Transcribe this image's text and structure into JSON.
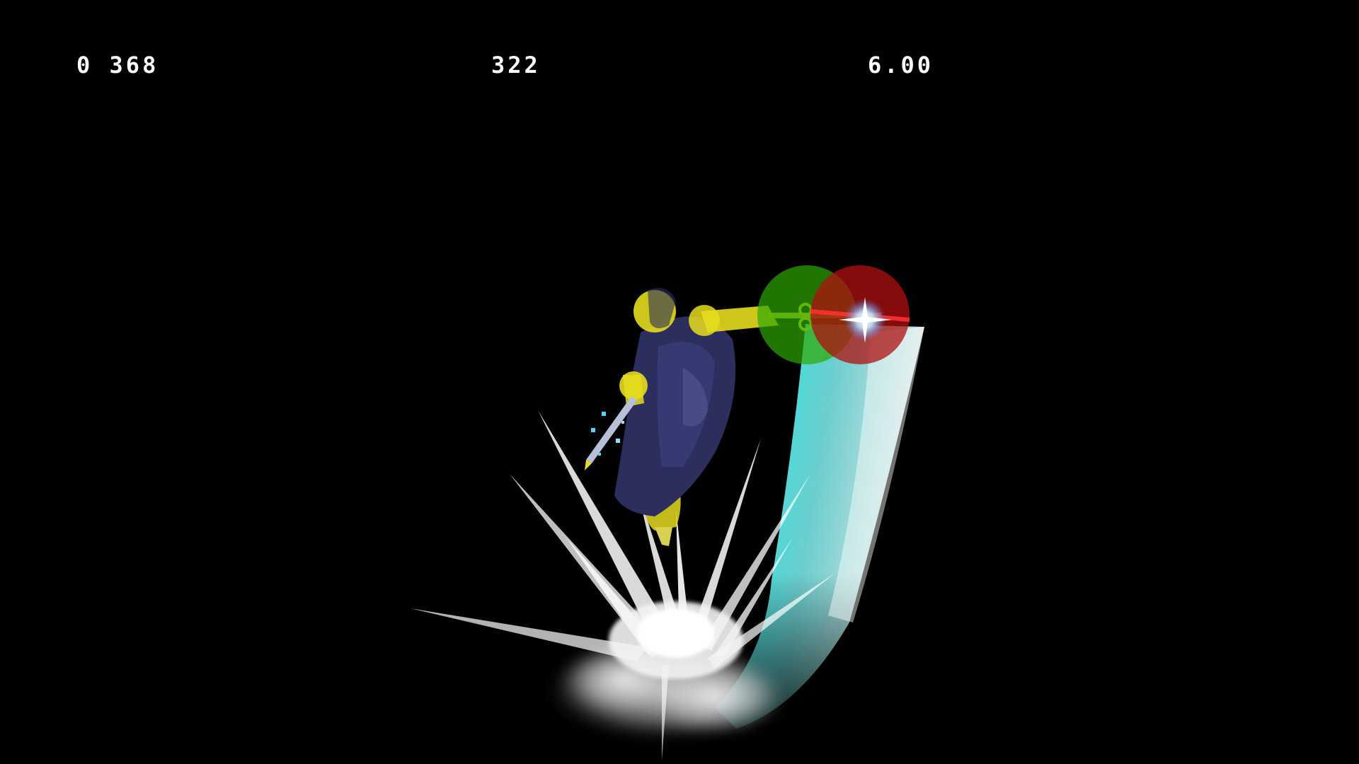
{
  "hud": {
    "left_readout": "0 368",
    "center_readout": "322",
    "right_readout": "6.00"
  },
  "scene": {
    "background_color": "#000000",
    "trail_color": "#00ffff",
    "hurtbox_color": "#e6dc1e",
    "cape_color": "#2c2f5e",
    "hitbox_green": "#2ea800",
    "hitbox_red": "#b01010",
    "impact_effect_color": "#ffffff"
  }
}
